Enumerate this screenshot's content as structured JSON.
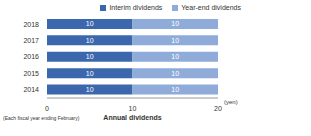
{
  "chart_data": {
    "type": "bar",
    "orientation": "horizontal",
    "stacked": true,
    "data_labels": true,
    "categories": [
      "2014",
      "2015",
      "2016",
      "2017",
      "2018"
    ],
    "series": [
      {
        "name": "Interim dividends",
        "color": "#3b67ad",
        "values": [
          10,
          10,
          10,
          10,
          10
        ]
      },
      {
        "name": "Year-end dividends",
        "color": "#8eabd9",
        "values": [
          10,
          10,
          10,
          10,
          10
        ]
      }
    ],
    "xlim": [
      0,
      20
    ],
    "xticks": [
      0,
      10,
      20
    ],
    "x_label": "Annual dividends",
    "annotations": [
      "(yen)",
      "(Each fiscal year ending February)"
    ],
    "grid": false,
    "legend": "top-right"
  }
}
